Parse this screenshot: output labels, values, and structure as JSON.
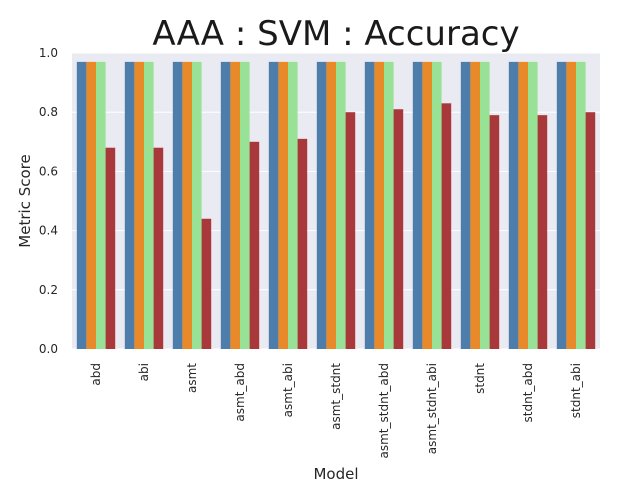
{
  "chart_data": {
    "type": "bar",
    "title": "AAA : SVM : Accuracy",
    "xlabel": "Model",
    "ylabel": "Metric Score",
    "ylim": [
      0,
      1.0
    ],
    "yticks": [
      "0.0",
      "0.2",
      "0.4",
      "0.6",
      "0.8",
      "1.0"
    ],
    "grid": true,
    "categories": [
      "abd",
      "abi",
      "asmt",
      "asmt_abd",
      "asmt_abi",
      "asmt_stdnt",
      "asmt_stdnt_abd",
      "asmt_stdnt_abi",
      "stdnt",
      "stdnt_abd",
      "stdnt_abi"
    ],
    "series": [
      {
        "color": "#4c7dab",
        "values": [
          0.97,
          0.97,
          0.97,
          0.97,
          0.97,
          0.97,
          0.97,
          0.97,
          0.97,
          0.97,
          0.97
        ]
      },
      {
        "color": "#e8892a",
        "values": [
          0.97,
          0.97,
          0.97,
          0.97,
          0.97,
          0.97,
          0.97,
          0.97,
          0.97,
          0.97,
          0.97
        ]
      },
      {
        "color": "#98e296",
        "values": [
          0.97,
          0.97,
          0.97,
          0.97,
          0.97,
          0.97,
          0.97,
          0.97,
          0.97,
          0.97,
          0.97
        ]
      },
      {
        "color": "#a8383a",
        "values": [
          0.68,
          0.68,
          0.44,
          0.7,
          0.71,
          0.8,
          0.81,
          0.83,
          0.79,
          0.79,
          0.8
        ]
      }
    ],
    "background": "#eaeaf2",
    "gridColor": "#ffffff"
  }
}
